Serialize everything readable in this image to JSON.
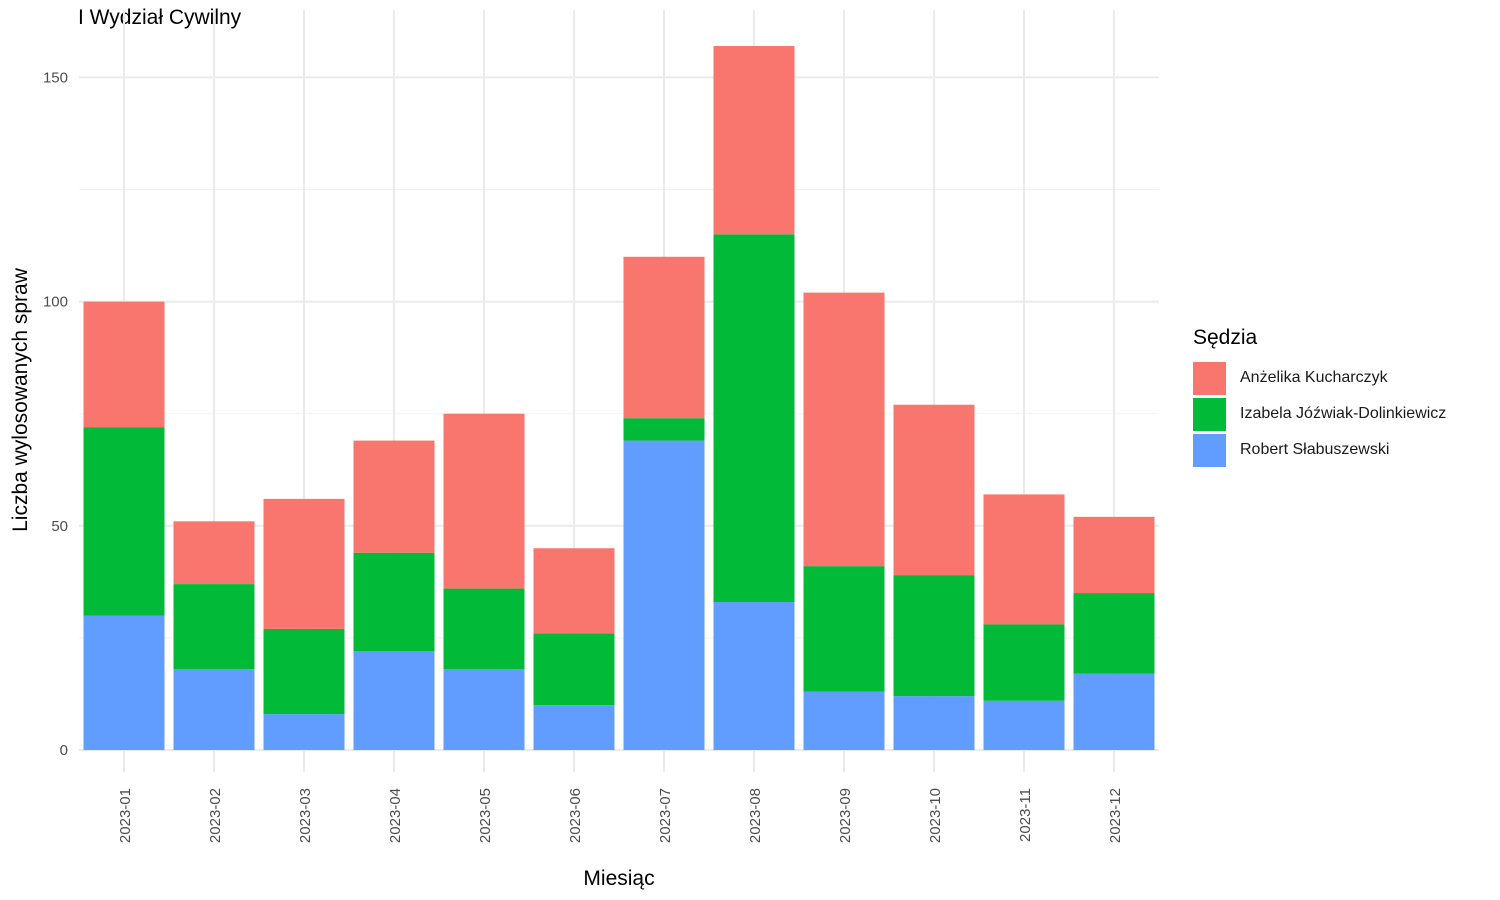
{
  "chart_data": {
    "type": "bar",
    "stacked": true,
    "title": "I Wydział Cywilny",
    "xlabel": "Miesiąc",
    "ylabel": "Liczba wylosowanych spraw",
    "ylim": [
      0,
      160
    ],
    "yticks": [
      0,
      50,
      100,
      150
    ],
    "grid": true,
    "legend_position": "right",
    "legend_title": "Sędzia",
    "categories": [
      "2023-01",
      "2023-02",
      "2023-03",
      "2023-04",
      "2023-05",
      "2023-06",
      "2023-07",
      "2023-08",
      "2023-09",
      "2023-10",
      "2023-11",
      "2023-12"
    ],
    "series": [
      {
        "name": "Anżelika Kucharczyk",
        "color": "#F8766D",
        "values": [
          28,
          14,
          29,
          25,
          39,
          19,
          36,
          42,
          61,
          38,
          29,
          17
        ]
      },
      {
        "name": "Izabela Jóźwiak-Dolinkiewicz",
        "color": "#00BA38",
        "values": [
          42,
          19,
          19,
          22,
          18,
          16,
          5,
          82,
          28,
          27,
          17,
          18
        ]
      },
      {
        "name": "Robert Słabuszewski",
        "color": "#619CFF",
        "values": [
          30,
          18,
          8,
          22,
          18,
          10,
          69,
          33,
          13,
          12,
          11,
          17
        ]
      }
    ]
  }
}
